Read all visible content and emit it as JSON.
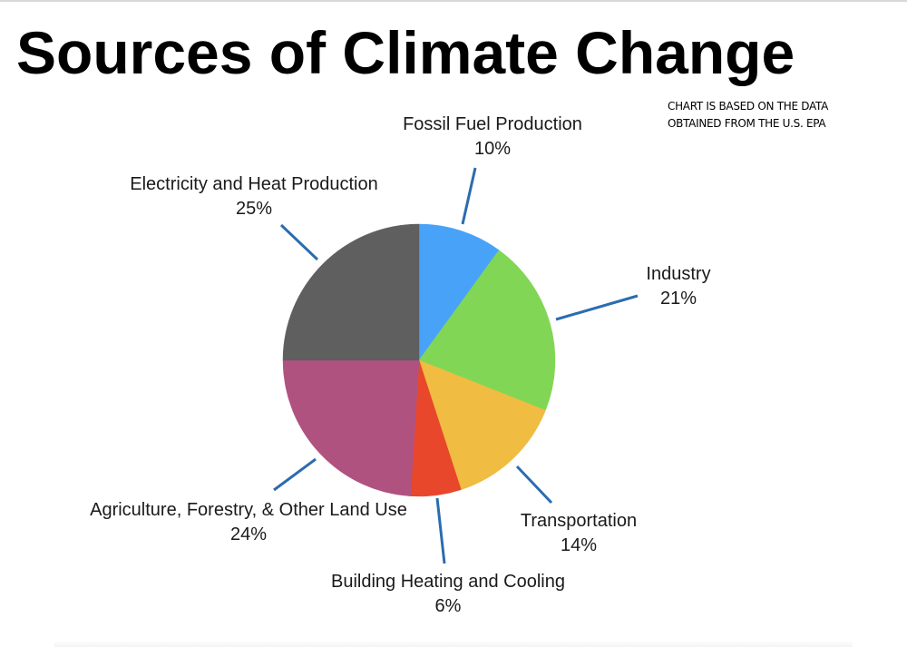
{
  "page": {
    "title": "Sources of Climate Change",
    "note_line1": "CHART IS BASED ON THE DATA",
    "note_line2": "OBTAINED FROM THE U.S. EPA"
  },
  "chart_data": {
    "type": "pie",
    "title": "Sources of Climate Change",
    "start_angle_deg": 0,
    "direction": "clockwise",
    "slices": [
      {
        "name": "Fossil Fuel Production",
        "value": 10,
        "label": "10%",
        "color": "#48a3f8"
      },
      {
        "name": "Industry",
        "value": 21,
        "label": "21%",
        "color": "#82d655"
      },
      {
        "name": "Transportation",
        "value": 14,
        "label": "14%",
        "color": "#f0bc41"
      },
      {
        "name": "Building Heating and Cooling",
        "value": 6,
        "label": "6%",
        "color": "#e8472c"
      },
      {
        "name": "Agriculture, Forestry, & Other Land Use",
        "value": 24,
        "label": "24%",
        "color": "#b05280"
      },
      {
        "name": "Electricity and Heat Production",
        "value": 25,
        "label": "25%",
        "color": "#5f5f5f"
      }
    ],
    "leader_line_color": "#2b6cb0"
  }
}
